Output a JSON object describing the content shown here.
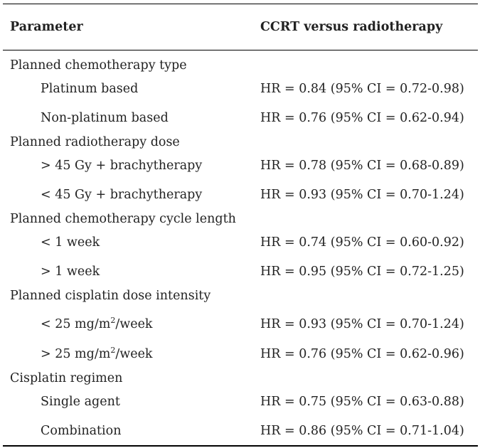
{
  "table": {
    "headers": {
      "parameter": "Parameter",
      "comparison": "CCRT versus radiotherapy"
    },
    "rows": [
      {
        "kind": "group",
        "parameter": "Planned chemotherapy type",
        "value": ""
      },
      {
        "kind": "sub",
        "parameter": "Platinum based",
        "value": "HR = 0.84 (95% CI = 0.72-0.98)"
      },
      {
        "kind": "sub",
        "parameter": "Non-platinum based",
        "value": "HR = 0.76 (95% CI = 0.62-0.94)"
      },
      {
        "kind": "group",
        "parameter": "Planned radiotherapy dose",
        "value": ""
      },
      {
        "kind": "sub",
        "parameter": "> 45 Gy + brachytherapy",
        "value": "HR = 0.78 (95% CI = 0.68-0.89)"
      },
      {
        "kind": "sub",
        "parameter": "< 45 Gy + brachytherapy",
        "value": "HR = 0.93 (95% CI = 0.70-1.24)"
      },
      {
        "kind": "group",
        "parameter": "Planned chemotherapy cycle length",
        "value": ""
      },
      {
        "kind": "sub",
        "parameter": "< 1 week",
        "value": "HR = 0.74 (95% CI = 0.60-0.92)"
      },
      {
        "kind": "sub",
        "parameter": "> 1 week",
        "value": "HR = 0.95 (95% CI = 0.72-1.25)"
      },
      {
        "kind": "group",
        "parameter": "Planned cisplatin dose intensity",
        "value": ""
      },
      {
        "kind": "sub",
        "parameter": "< 25 mg/m²/week",
        "value": "HR = 0.93 (95% CI = 0.70-1.24)"
      },
      {
        "kind": "sub",
        "parameter": "> 25 mg/m²/week",
        "value": "HR = 0.76 (95% CI = 0.62-0.96)"
      },
      {
        "kind": "group",
        "parameter": "Cisplatin regimen",
        "value": ""
      },
      {
        "kind": "sub",
        "parameter": "Single agent",
        "value": "HR = 0.75 (95% CI = 0.63-0.88)"
      },
      {
        "kind": "sub",
        "parameter": "Combination",
        "value": "HR = 0.86 (95% CI = 0.71-1.04)"
      }
    ]
  }
}
